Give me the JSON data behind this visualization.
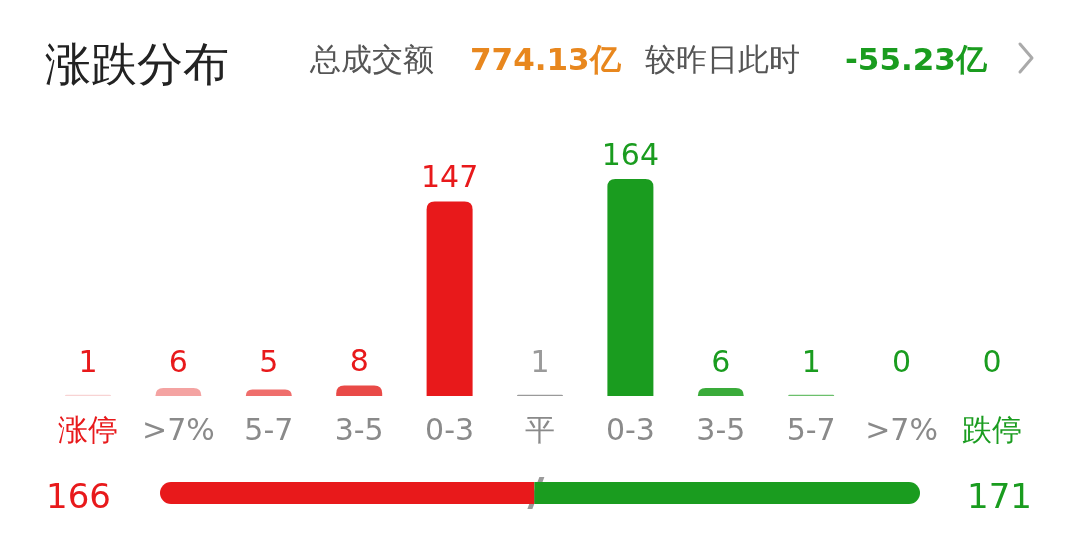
{
  "chart_data": [
    {
      "type": "bar",
      "title": "涨跌分布",
      "annotations": [
        "总成交额",
        "774.13亿",
        "较昨日此时",
        "-55.23亿"
      ],
      "categories": [
        "涨停",
        ">7%",
        "5-7",
        "3-5",
        "0-3",
        "平",
        "0-3",
        "3-5",
        "5-7",
        ">7%",
        "跌停"
      ],
      "values": [
        1,
        6,
        5,
        8,
        147,
        1,
        164,
        6,
        1,
        0,
        0
      ],
      "colors": [
        "#f8d3d3",
        "#f4a3a2",
        "#ef6e6c",
        "#e94a47",
        "#e8191b",
        "#9a9a9a",
        "#1a9c1f",
        "#3aab3a",
        "#6cc06c",
        "#a6daa6",
        "#d3efd3"
      ],
      "data_labels": true
    },
    {
      "type": "bar",
      "orientation": "horizontal",
      "stacked": true,
      "categories": [
        null
      ],
      "series": [
        {
          "color": "#e8191b",
          "values": [
            166
          ]
        },
        {
          "color": "#1a9c1f",
          "values": [
            171
          ]
        }
      ],
      "data_labels": true
    }
  ]
}
